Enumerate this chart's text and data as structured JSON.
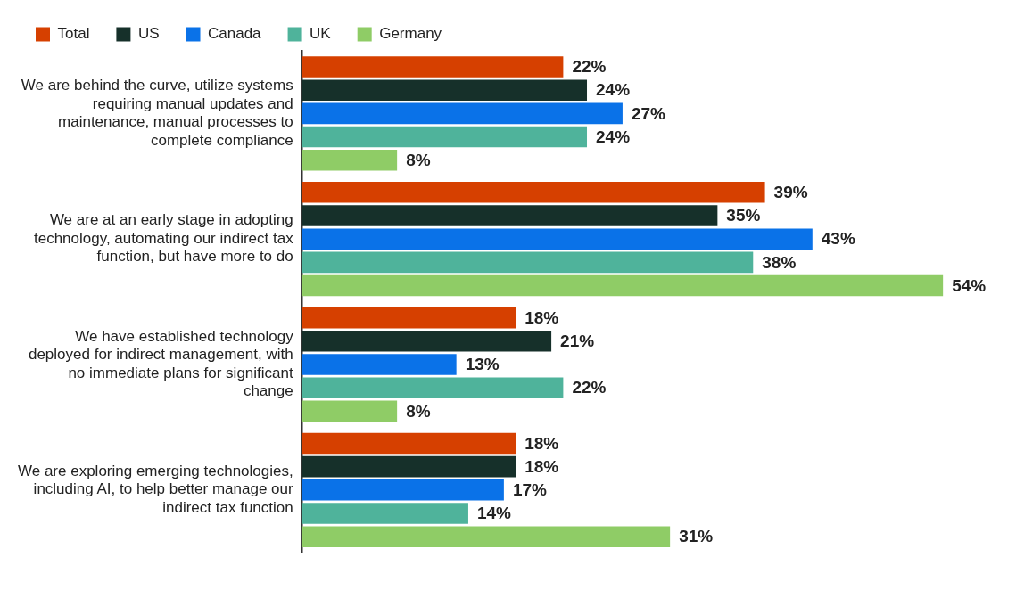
{
  "chart_data": {
    "type": "bar",
    "orientation": "horizontal",
    "legend": "top left",
    "categories": [
      "We are behind the curve, utilize systems requiring manual updates and maintenance, manual processes to complete compliance",
      "We are at an early stage in adopting technology, automating our indirect tax function, but have more to do",
      "We have established technology deployed for indirect management, with no immediate plans for significant change",
      "We are exploring emerging technologies, including AI, to help better manage our indirect tax function"
    ],
    "series": [
      {
        "name": "Total",
        "color": "#d64000",
        "values": [
          22,
          39,
          18,
          18
        ],
        "value_labels": [
          "22%",
          "39%",
          "18%",
          "18%"
        ]
      },
      {
        "name": "US",
        "color": "#16302a",
        "values": [
          24,
          35,
          21,
          18
        ],
        "value_labels": [
          "24%",
          "35%",
          "21%",
          "18%"
        ]
      },
      {
        "name": "Canada",
        "color": "#0a72e8",
        "values": [
          27,
          43,
          13,
          17
        ],
        "value_labels": [
          "27%",
          "43%",
          "13%",
          "17%"
        ]
      },
      {
        "name": "UK",
        "color": "#4fb39b",
        "values": [
          24,
          38,
          22,
          14
        ],
        "value_labels": [
          "24%",
          "38%",
          "22%",
          "14%"
        ]
      },
      {
        "name": "Germany",
        "color": "#8fcc66",
        "values": [
          8,
          54,
          8,
          31
        ],
        "value_labels": [
          "8%",
          "54%",
          "8%",
          "31%"
        ]
      }
    ]
  }
}
